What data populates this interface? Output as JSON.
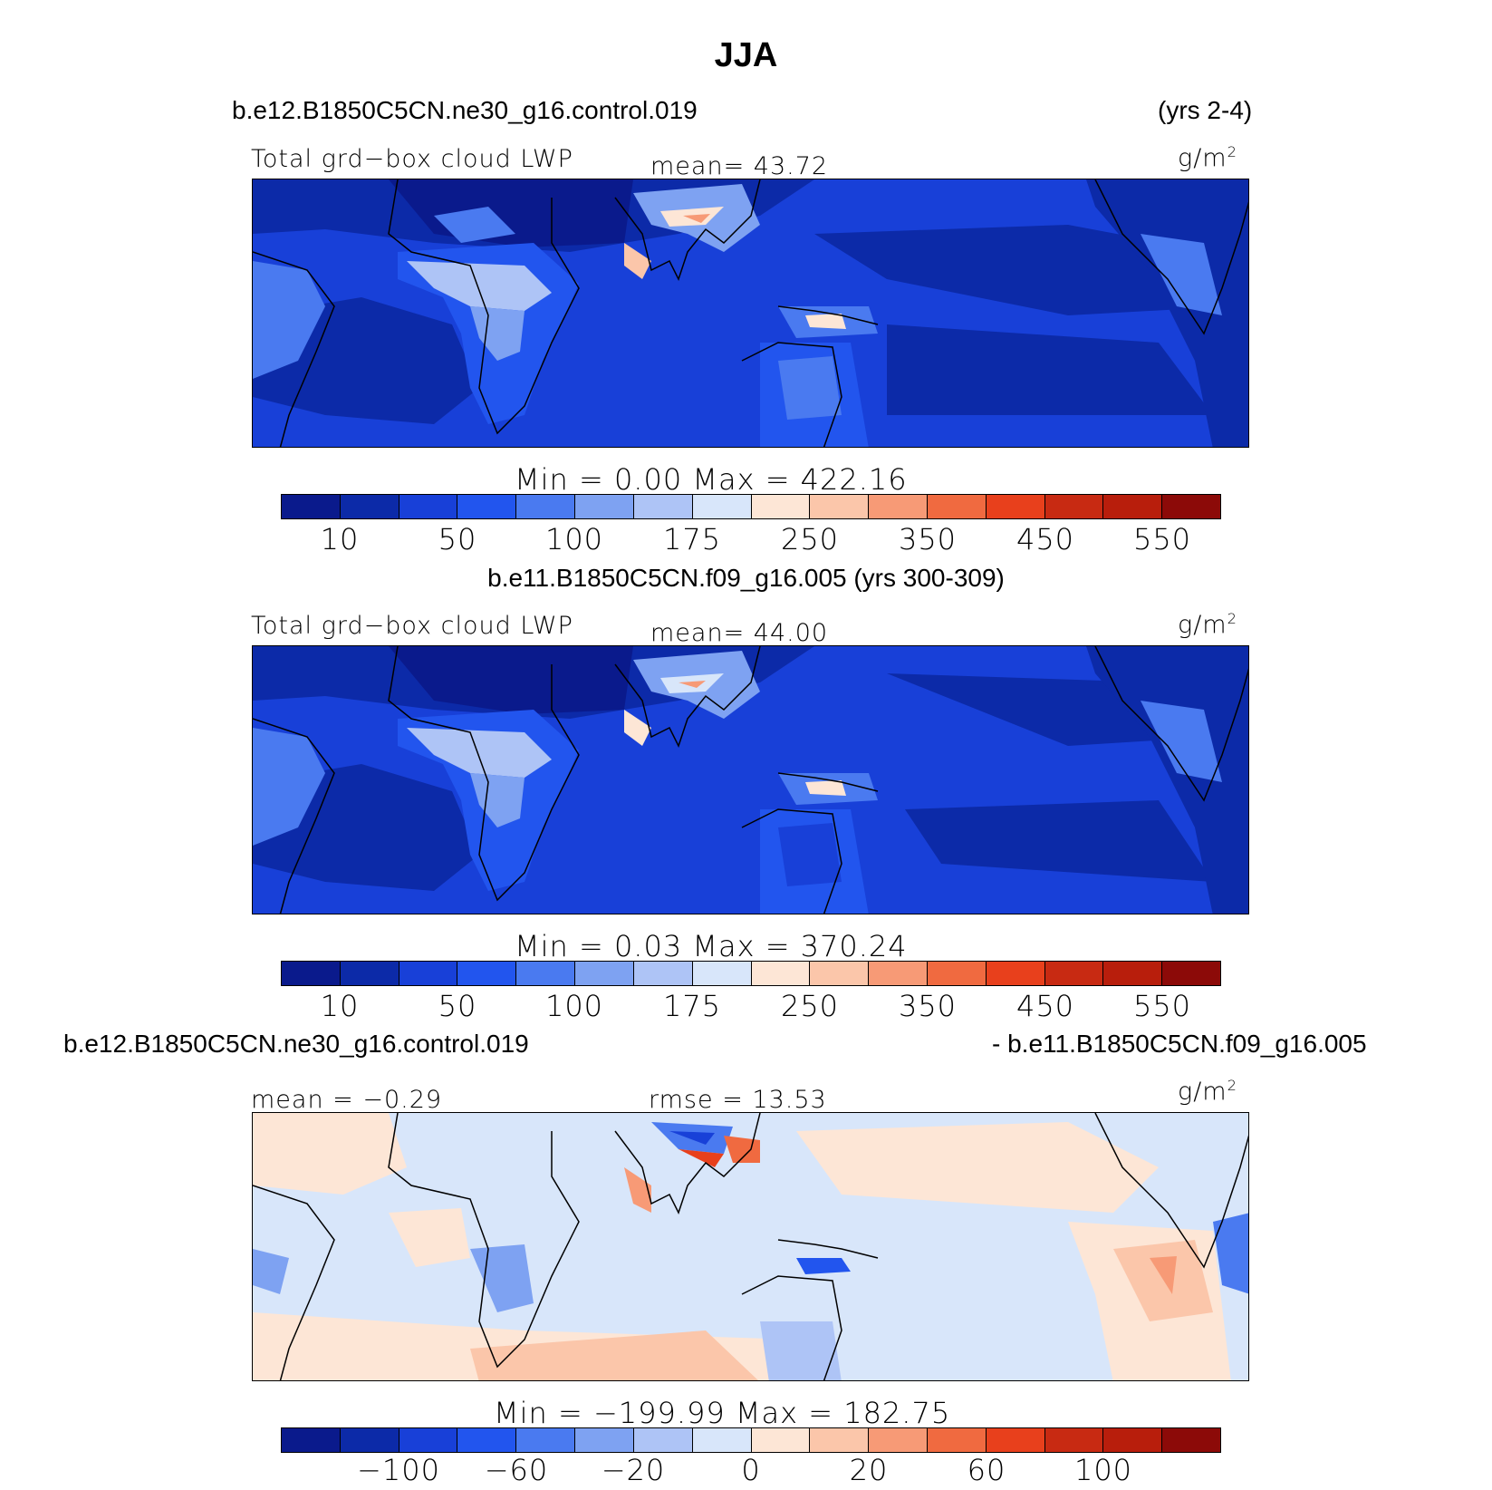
{
  "title": "JJA",
  "palettes": {
    "full": [
      "#0a1a8c",
      "#0c2aa8",
      "#1840d8",
      "#2255ee",
      "#4a7af0",
      "#7ea2f2",
      "#aec4f6",
      "#d8e6fa",
      "#fde6d6",
      "#fbc6aa",
      "#f79a76",
      "#f06a40",
      "#e8401c",
      "#c82a12",
      "#b81e0c",
      "#8c0a08"
    ],
    "cbar_colors": [
      "#0a1a8c",
      "#0c2aa8",
      "#1840d8",
      "#2255ee",
      "#4a7af0",
      "#7ea2f2",
      "#aec4f6",
      "#d8e6fa",
      "#fde6d6",
      "#fbc6aa",
      "#f79a76",
      "#f06a40",
      "#e8401c",
      "#c82a12",
      "#b81e0c",
      "#8c0a08"
    ]
  },
  "panel1": {
    "case_left": "b.e12.B1850C5CN.ne30_g16.control.019",
    "case_right": "(yrs 2-4)",
    "var_name": "Total grd−box cloud LWP",
    "mean_text": "mean=  43.72",
    "units": "g/m",
    "units_sup": "2",
    "minmax": "Min  =    0.00  Max  =  422.16",
    "ticks": [
      "10",
      "50",
      "100",
      "175",
      "250",
      "350",
      "450",
      "550"
    ]
  },
  "panel2": {
    "case_center": "b.e11.B1850C5CN.f09_g16.005 (yrs 300-309)",
    "var_name": "Total grd−box cloud LWP",
    "mean_text": "mean=  44.00",
    "units": "g/m",
    "units_sup": "2",
    "minmax": "Min  =    0.03  Max  =  370.24",
    "ticks": [
      "10",
      "50",
      "100",
      "175",
      "250",
      "350",
      "450",
      "550"
    ]
  },
  "panel3": {
    "case_left": "b.e12.B1850C5CN.ne30_g16.control.019",
    "case_right": "- b.e11.B1850C5CN.f09_g16.005",
    "mean_text": "mean  =   −0.29",
    "rmse_text": "rmse  =   13.53",
    "units": "g/m",
    "units_sup": "2",
    "minmax": "Min  =  −199.99  Max  =  182.75",
    "ticks": [
      "−100",
      "−60",
      "−20",
      "0",
      "20",
      "60",
      "100"
    ]
  }
}
